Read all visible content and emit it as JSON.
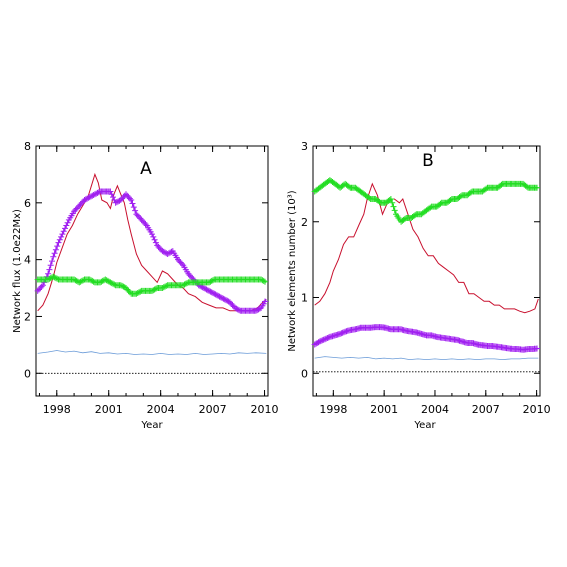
{
  "chart_data": [
    {
      "type": "line",
      "panel_label": "A",
      "xlabel": "Year",
      "ylabel": "Network flux (1.0e22Mx)",
      "xlim": [
        1996.8,
        2010.2
      ],
      "ylim": [
        -0.8,
        8
      ],
      "xticks": [
        1998,
        2001,
        2004,
        2007,
        2010
      ],
      "yticks": [
        0,
        2,
        4,
        6,
        8
      ],
      "grid": false,
      "legend": "none",
      "series": [
        {
          "color": "#c8102e",
          "style": "line",
          "x": [
            1996.9,
            1997.2,
            1997.5,
            1997.8,
            1998.0,
            1998.3,
            1998.6,
            1998.9,
            1999.2,
            1999.5,
            1999.8,
            2000.0,
            2000.2,
            2000.4,
            2000.6,
            2000.9,
            2001.1,
            2001.3,
            2001.5,
            2001.7,
            2001.9,
            2002.1,
            2002.3,
            2002.6,
            2002.9,
            2003.2,
            2003.5,
            2003.8,
            2004.1,
            2004.4,
            2004.7,
            2005.0,
            2005.3,
            2005.6,
            2006.0,
            2006.4,
            2006.8,
            2007.2,
            2007.6,
            2008.0,
            2008.4,
            2008.8,
            2009.2,
            2009.6,
            2009.9,
            2010.1
          ],
          "y": [
            2.2,
            2.4,
            2.8,
            3.4,
            3.9,
            4.4,
            4.9,
            5.2,
            5.6,
            5.9,
            6.2,
            6.6,
            7.0,
            6.7,
            6.1,
            6.0,
            5.8,
            6.3,
            6.6,
            6.3,
            6.0,
            5.4,
            4.9,
            4.2,
            3.8,
            3.6,
            3.4,
            3.2,
            3.6,
            3.5,
            3.3,
            3.1,
            3.0,
            2.8,
            2.7,
            2.5,
            2.4,
            2.3,
            2.3,
            2.2,
            2.2,
            2.2,
            2.2,
            2.3,
            2.5,
            2.6
          ]
        },
        {
          "color": "#a020f0",
          "style": "cross",
          "x": [
            1996.9,
            1997.2,
            1997.5,
            1997.8,
            1998.1,
            1998.4,
            1998.7,
            1999.0,
            1999.3,
            1999.6,
            1999.9,
            2000.2,
            2000.5,
            2000.8,
            2001.1,
            2001.4,
            2001.7,
            2002.0,
            2002.3,
            2002.6,
            2002.9,
            2003.2,
            2003.5,
            2003.8,
            2004.1,
            2004.4,
            2004.7,
            2005.0,
            2005.3,
            2005.6,
            2005.9,
            2006.2,
            2006.5,
            2006.8,
            2007.1,
            2007.4,
            2007.7,
            2008.0,
            2008.3,
            2008.6,
            2008.9,
            2009.2,
            2009.5,
            2009.8,
            2010.1
          ],
          "y": [
            2.9,
            3.1,
            3.5,
            4.1,
            4.6,
            5.0,
            5.4,
            5.7,
            5.9,
            6.1,
            6.2,
            6.3,
            6.4,
            6.4,
            6.4,
            6.0,
            6.1,
            6.3,
            6.1,
            5.6,
            5.4,
            5.2,
            4.9,
            4.5,
            4.3,
            4.2,
            4.3,
            4.0,
            3.8,
            3.5,
            3.3,
            3.1,
            3.0,
            2.9,
            2.8,
            2.7,
            2.6,
            2.5,
            2.3,
            2.2,
            2.2,
            2.2,
            2.2,
            2.3,
            2.6
          ]
        },
        {
          "color": "#22dd22",
          "style": "cross",
          "x": [
            1996.9,
            1997.2,
            1997.5,
            1997.8,
            1998.1,
            1998.4,
            1998.7,
            1999.0,
            1999.3,
            1999.6,
            1999.9,
            2000.2,
            2000.5,
            2000.8,
            2001.1,
            2001.4,
            2001.7,
            2002.0,
            2002.3,
            2002.6,
            2002.9,
            2003.2,
            2003.5,
            2003.8,
            2004.1,
            2004.4,
            2004.7,
            2005.0,
            2005.3,
            2005.6,
            2005.9,
            2006.2,
            2006.5,
            2006.8,
            2007.1,
            2007.4,
            2007.7,
            2008.0,
            2008.3,
            2008.6,
            2008.9,
            2009.2,
            2009.5,
            2009.8,
            2010.1
          ],
          "y": [
            3.3,
            3.3,
            3.3,
            3.4,
            3.3,
            3.3,
            3.3,
            3.3,
            3.2,
            3.3,
            3.3,
            3.2,
            3.2,
            3.3,
            3.2,
            3.1,
            3.1,
            3.0,
            2.8,
            2.8,
            2.9,
            2.9,
            2.9,
            3.0,
            3.0,
            3.1,
            3.1,
            3.1,
            3.1,
            3.2,
            3.2,
            3.2,
            3.2,
            3.2,
            3.3,
            3.3,
            3.3,
            3.3,
            3.3,
            3.3,
            3.3,
            3.3,
            3.3,
            3.3,
            3.2
          ]
        },
        {
          "color": "#6a9bd8",
          "style": "line",
          "x": [
            1996.9,
            1997.5,
            1998.0,
            1998.5,
            1999.0,
            1999.5,
            2000.0,
            2000.5,
            2001.0,
            2001.5,
            2002.0,
            2002.5,
            2003.0,
            2003.5,
            2004.0,
            2004.5,
            2005.0,
            2005.5,
            2006.0,
            2006.5,
            2007.0,
            2007.5,
            2008.0,
            2008.5,
            2009.0,
            2009.5,
            2010.1
          ],
          "y": [
            0.7,
            0.75,
            0.8,
            0.75,
            0.78,
            0.72,
            0.76,
            0.7,
            0.72,
            0.68,
            0.7,
            0.66,
            0.68,
            0.66,
            0.7,
            0.66,
            0.68,
            0.66,
            0.7,
            0.66,
            0.68,
            0.7,
            0.68,
            0.72,
            0.7,
            0.72,
            0.7
          ]
        },
        {
          "color": "#000000",
          "style": "dotted",
          "x": [
            1996.8,
            2010.2
          ],
          "y": [
            0,
            0
          ]
        }
      ]
    },
    {
      "type": "line",
      "panel_label": "B",
      "xlabel": "Year",
      "ylabel": "Network elements number (10³)",
      "xlim": [
        1996.8,
        2010.2
      ],
      "ylim": [
        -0.3,
        3
      ],
      "xticks": [
        1998,
        2001,
        2004,
        2007,
        2010
      ],
      "yticks": [
        0,
        1,
        2,
        3
      ],
      "grid": false,
      "legend": "none",
      "series": [
        {
          "color": "#c8102e",
          "style": "line",
          "x": [
            1996.9,
            1997.2,
            1997.5,
            1997.8,
            1998.0,
            1998.3,
            1998.6,
            1998.9,
            1999.2,
            1999.5,
            1999.8,
            2000.0,
            2000.3,
            2000.6,
            2000.9,
            2001.1,
            2001.3,
            2001.6,
            2001.9,
            2002.1,
            2002.4,
            2002.7,
            2003.0,
            2003.3,
            2003.6,
            2003.9,
            2004.2,
            2004.5,
            2004.8,
            2005.1,
            2005.4,
            2005.7,
            2006.0,
            2006.3,
            2006.6,
            2006.9,
            2007.2,
            2007.5,
            2007.8,
            2008.1,
            2008.4,
            2008.7,
            2009.0,
            2009.3,
            2009.6,
            2009.9,
            2010.1
          ],
          "y": [
            0.9,
            0.95,
            1.05,
            1.2,
            1.35,
            1.5,
            1.7,
            1.8,
            1.8,
            1.95,
            2.1,
            2.3,
            2.5,
            2.35,
            2.1,
            2.2,
            2.3,
            2.3,
            2.25,
            2.3,
            2.1,
            1.9,
            1.8,
            1.65,
            1.55,
            1.55,
            1.45,
            1.4,
            1.35,
            1.3,
            1.2,
            1.2,
            1.05,
            1.05,
            1.0,
            0.95,
            0.95,
            0.9,
            0.9,
            0.85,
            0.85,
            0.85,
            0.82,
            0.8,
            0.82,
            0.85,
            0.98
          ]
        },
        {
          "color": "#22dd22",
          "style": "cross",
          "x": [
            1996.9,
            1997.2,
            1997.5,
            1997.8,
            1998.1,
            1998.4,
            1998.7,
            1999.0,
            1999.3,
            1999.6,
            1999.9,
            2000.2,
            2000.5,
            2000.8,
            2001.1,
            2001.4,
            2001.7,
            2002.0,
            2002.3,
            2002.6,
            2002.9,
            2003.2,
            2003.5,
            2003.8,
            2004.1,
            2004.4,
            2004.7,
            2005.0,
            2005.3,
            2005.6,
            2005.9,
            2006.2,
            2006.5,
            2006.8,
            2007.1,
            2007.4,
            2007.7,
            2008.0,
            2008.3,
            2008.6,
            2008.9,
            2009.2,
            2009.5,
            2009.8,
            2010.1
          ],
          "y": [
            2.4,
            2.45,
            2.5,
            2.55,
            2.5,
            2.45,
            2.5,
            2.45,
            2.45,
            2.4,
            2.35,
            2.3,
            2.3,
            2.25,
            2.25,
            2.3,
            2.1,
            2.0,
            2.05,
            2.05,
            2.1,
            2.1,
            2.15,
            2.2,
            2.2,
            2.25,
            2.25,
            2.3,
            2.3,
            2.35,
            2.35,
            2.4,
            2.4,
            2.4,
            2.45,
            2.45,
            2.45,
            2.5,
            2.5,
            2.5,
            2.5,
            2.5,
            2.45,
            2.45,
            2.45
          ]
        },
        {
          "color": "#a020f0",
          "style": "cross",
          "x": [
            1996.9,
            1997.2,
            1997.5,
            1997.8,
            1998.1,
            1998.4,
            1998.7,
            1999.0,
            1999.3,
            1999.6,
            1999.9,
            2000.2,
            2000.5,
            2000.8,
            2001.1,
            2001.4,
            2001.7,
            2002.0,
            2002.3,
            2002.6,
            2002.9,
            2003.2,
            2003.5,
            2003.8,
            2004.1,
            2004.4,
            2004.7,
            2005.0,
            2005.3,
            2005.6,
            2005.9,
            2006.2,
            2006.5,
            2006.8,
            2007.1,
            2007.4,
            2007.7,
            2008.0,
            2008.3,
            2008.6,
            2008.9,
            2009.2,
            2009.5,
            2009.8,
            2010.1
          ],
          "y": [
            0.38,
            0.42,
            0.45,
            0.48,
            0.5,
            0.52,
            0.55,
            0.57,
            0.58,
            0.6,
            0.6,
            0.6,
            0.61,
            0.61,
            0.6,
            0.58,
            0.58,
            0.58,
            0.56,
            0.55,
            0.54,
            0.52,
            0.5,
            0.5,
            0.48,
            0.47,
            0.46,
            0.45,
            0.44,
            0.42,
            0.4,
            0.4,
            0.38,
            0.37,
            0.36,
            0.36,
            0.35,
            0.34,
            0.33,
            0.32,
            0.32,
            0.31,
            0.32,
            0.32,
            0.33
          ]
        },
        {
          "color": "#6a9bd8",
          "style": "line",
          "x": [
            1996.9,
            1997.5,
            1998.0,
            1998.5,
            1999.0,
            1999.5,
            2000.0,
            2000.5,
            2001.0,
            2001.5,
            2002.0,
            2002.5,
            2003.0,
            2003.5,
            2004.0,
            2004.5,
            2005.0,
            2005.5,
            2006.0,
            2006.5,
            2007.0,
            2007.5,
            2008.0,
            2008.5,
            2009.0,
            2009.5,
            2010.1
          ],
          "y": [
            0.2,
            0.22,
            0.21,
            0.2,
            0.21,
            0.2,
            0.21,
            0.19,
            0.2,
            0.19,
            0.2,
            0.18,
            0.19,
            0.18,
            0.19,
            0.18,
            0.19,
            0.18,
            0.19,
            0.18,
            0.19,
            0.19,
            0.18,
            0.19,
            0.19,
            0.2,
            0.2
          ]
        },
        {
          "color": "#000000",
          "style": "dotted",
          "x": [
            1996.8,
            2010.2
          ],
          "y": [
            0.02,
            0.02
          ]
        }
      ]
    }
  ]
}
